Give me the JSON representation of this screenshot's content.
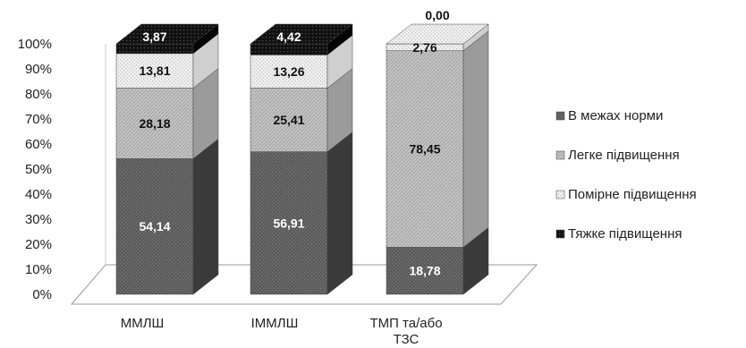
{
  "chart_data": {
    "type": "bar",
    "stacked": true,
    "percent": true,
    "three_d": true,
    "categories": [
      "ММЛШ",
      "ІММЛШ",
      "ТМП та/або ТЗС"
    ],
    "series": [
      {
        "name": "В межах норми",
        "values": [
          54.14,
          56.91,
          18.78
        ],
        "labels": [
          "54,14",
          "56,91",
          "18,78"
        ],
        "color": "#5a5a5a"
      },
      {
        "name": "Легке підвищення",
        "values": [
          28.18,
          25.41,
          78.45
        ],
        "labels": [
          "28,18",
          "25,41",
          "78,45"
        ],
        "color": "#c8c8c8"
      },
      {
        "name": "Помірне підвищення",
        "values": [
          13.81,
          13.26,
          2.76
        ],
        "labels": [
          "13,81",
          "13,26",
          "2,76"
        ],
        "color": "#ececec"
      },
      {
        "name": "Тяжке підвищення",
        "values": [
          3.87,
          4.42,
          0.0
        ],
        "labels": [
          "3,87",
          "4,42",
          "0,00"
        ],
        "color": "#111111"
      }
    ],
    "y_ticks": [
      "0%",
      "10%",
      "20%",
      "30%",
      "40%",
      "50%",
      "60%",
      "70%",
      "80%",
      "90%",
      "100%"
    ],
    "ylim": [
      0,
      100
    ],
    "legend_position": "right",
    "grid": false
  }
}
